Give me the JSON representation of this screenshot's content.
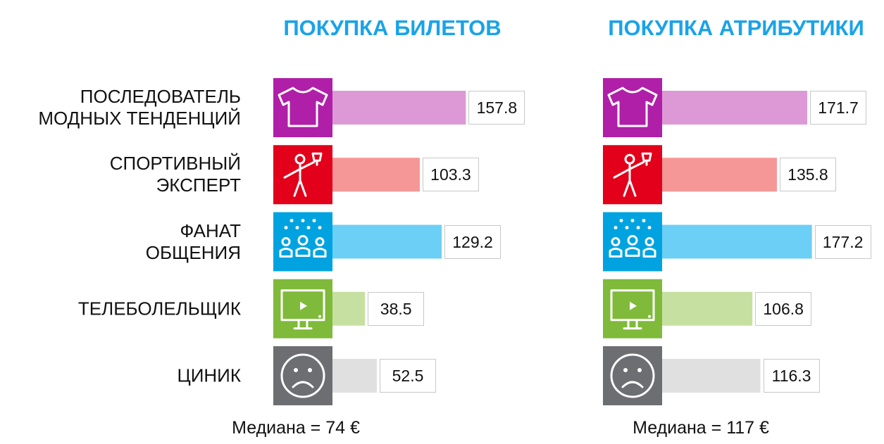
{
  "chart_data": [
    {
      "type": "bar",
      "orientation": "horizontal",
      "title": "ПОКУПКА БИЛЕТОВ",
      "categories": [
        "ПОСЛЕДОВАТЕЛЬ\nМОДНЫХ ТЕНДЕНЦИЙ",
        "СПОРТИВНЫЙ\nЭКСПЕРТ",
        "ФАНАТ\nОБЩЕНИЯ",
        "ТЕЛЕБОЛЕЛЬЩИК",
        "ЦИНИК"
      ],
      "values": [
        157.8,
        103.3,
        129.2,
        38.5,
        52.5
      ],
      "icon_colors": [
        "#b01fa8",
        "#e2001a",
        "#00a3e0",
        "#7fba3a",
        "#6d6e71"
      ],
      "colors": [
        "#dd99d6",
        "#f59796",
        "#6ccff6",
        "#c5e0a0",
        "#e0e0e0"
      ],
      "note": "Медиана = 74 €"
    },
    {
      "type": "bar",
      "orientation": "horizontal",
      "title": "ПОКУПКА АТРИБУТИКИ",
      "values": [
        171.7,
        135.8,
        177.2,
        106.8,
        116.3
      ],
      "icon_colors": [
        "#b01fa8",
        "#e2001a",
        "#00a3e0",
        "#7fba3a",
        "#6d6e71"
      ],
      "colors": [
        "#dd99d6",
        "#f59796",
        "#6ccff6",
        "#c5e0a0",
        "#e0e0e0"
      ],
      "note": "Медиана = 117 €"
    }
  ]
}
